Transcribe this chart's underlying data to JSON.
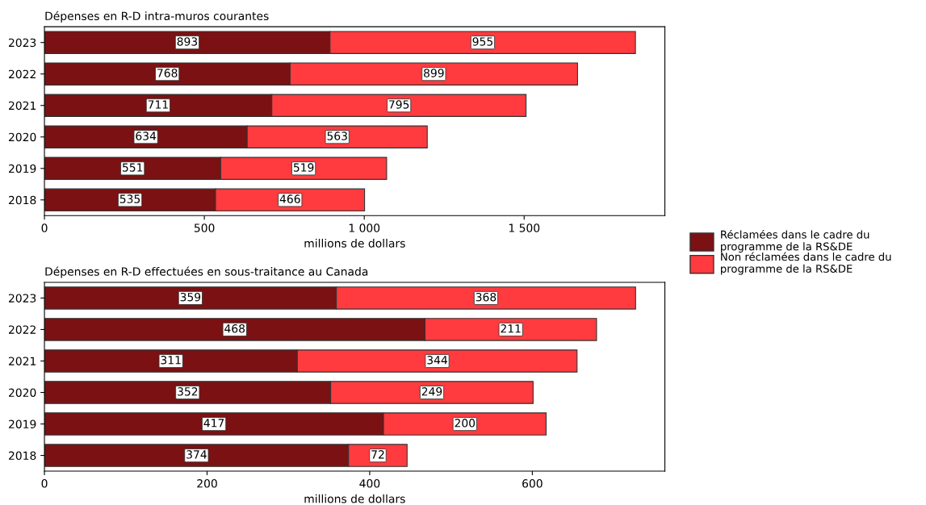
{
  "chart_data": [
    {
      "type": "bar",
      "orientation": "horizontal",
      "stacked": true,
      "title": "Dépenses en R-D intra-muros courantes",
      "xlabel": "millions de dollars",
      "categories": [
        "2023",
        "2022",
        "2021",
        "2020",
        "2019",
        "2018"
      ],
      "xlim": [
        0,
        1940
      ],
      "xticks": [
        0,
        {
          "value": 500,
          "label": "500"
        },
        {
          "value": 1000,
          "label": "1 000"
        },
        {
          "value": 1500,
          "label": "1 500"
        }
      ],
      "data_labels": true,
      "grid": false,
      "legend": "right",
      "series": [
        {
          "name": "Réclamées dans le cadre du\nprogramme de la RS&DE",
          "color": "#7b1113",
          "values": [
            893,
            768,
            711,
            634,
            551,
            535
          ]
        },
        {
          "name": "Non réclamées dans le cadre du\nprogramme de la RS&DE",
          "color": "#ff3b3f",
          "values": [
            955,
            899,
            795,
            563,
            519,
            466
          ]
        }
      ]
    },
    {
      "type": "bar",
      "orientation": "horizontal",
      "stacked": true,
      "title": "Dépenses en R-D effectuées en sous-traitance au Canada",
      "xlabel": "millions de dollars",
      "categories": [
        "2023",
        "2022",
        "2021",
        "2020",
        "2019",
        "2018"
      ],
      "xlim": [
        0,
        763
      ],
      "xticks": [
        0,
        200,
        400,
        600
      ],
      "data_labels": true,
      "grid": false,
      "series": [
        {
          "color": "#7b1113",
          "values": [
            359,
            468,
            311,
            352,
            417,
            374
          ]
        },
        {
          "color": "#ff3b3f",
          "values": [
            368,
            211,
            344,
            249,
            200,
            72
          ]
        }
      ]
    }
  ]
}
